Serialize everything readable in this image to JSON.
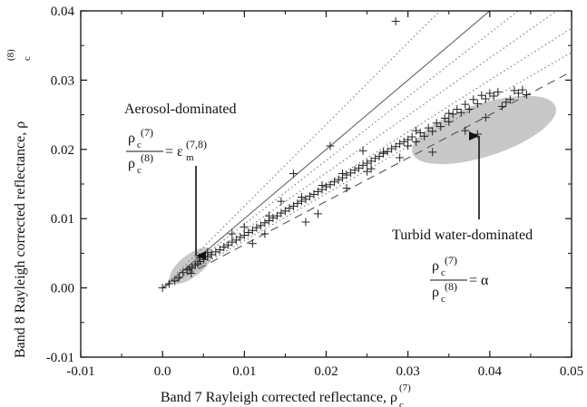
{
  "chart_data": {
    "type": "scatter",
    "xlabel": "Band 7 Rayleigh corrected reflectance, ρ",
    "xlabel_sub": "c",
    "xlabel_sup": "(7)",
    "ylabel": "Band 8 Rayleigh corrected reflectance, ρ",
    "ylabel_sub": "c",
    "ylabel_sup": "(8)",
    "xlim": [
      -0.01,
      0.05
    ],
    "ylim": [
      -0.01,
      0.04
    ],
    "xticks": [
      -0.01,
      0.0,
      0.01,
      0.02,
      0.03,
      0.04,
      0.05
    ],
    "xtick_labels": [
      "-0.01",
      "0.0",
      "0.01",
      "0.02",
      "0.03",
      "0.04",
      "0.05"
    ],
    "yticks": [
      -0.01,
      0.0,
      0.01,
      0.02,
      0.03,
      0.04
    ],
    "ytick_labels": [
      "-0.01",
      "0.00",
      "0.01",
      "0.02",
      "0.03",
      "0.04"
    ],
    "grid": false,
    "series": [
      {
        "marker": "+",
        "x": [
          0.0,
          0.0008,
          0.0015,
          0.002,
          0.0025,
          0.003,
          0.0033,
          0.0036,
          0.004,
          0.0043,
          0.0046,
          0.005,
          0.0055,
          0.006,
          0.0065,
          0.007,
          0.0075,
          0.008,
          0.0085,
          0.009,
          0.0095,
          0.01,
          0.0105,
          0.011,
          0.0115,
          0.012,
          0.0125,
          0.013,
          0.0135,
          0.014,
          0.0145,
          0.015,
          0.0155,
          0.016,
          0.0165,
          0.017,
          0.0175,
          0.018,
          0.0185,
          0.019,
          0.0195,
          0.02,
          0.0205,
          0.021,
          0.0215,
          0.022,
          0.0225,
          0.023,
          0.0235,
          0.024,
          0.0245,
          0.025,
          0.0255,
          0.026,
          0.0265,
          0.027,
          0.0275,
          0.028,
          0.0285,
          0.029,
          0.0295,
          0.03,
          0.0305,
          0.031,
          0.0315,
          0.032,
          0.0325,
          0.033,
          0.0335,
          0.034,
          0.0345,
          0.035,
          0.0355,
          0.036,
          0.0365,
          0.037,
          0.0375,
          0.038,
          0.0385,
          0.039,
          0.0395,
          0.04,
          0.0405,
          0.041,
          0.042,
          0.043,
          0.0435,
          0.044,
          0.0445,
          0.0035,
          0.0045,
          0.0055,
          0.0085,
          0.011,
          0.013,
          0.017,
          0.019,
          0.0225,
          0.025,
          0.027,
          0.029,
          0.03,
          0.031,
          0.033,
          0.035,
          0.037,
          0.0395,
          0.0415,
          0.0425,
          0.0125,
          0.0175,
          0.0195,
          0.022,
          0.0255,
          0.0245,
          0.0385,
          0.01,
          0.0145,
          0.016,
          0.0205,
          0.0285
        ],
        "y": [
          0.0,
          0.0006,
          0.001,
          0.0015,
          0.0022,
          0.0026,
          0.0028,
          0.003,
          0.0033,
          0.0035,
          0.0038,
          0.0041,
          0.0045,
          0.0048,
          0.0052,
          0.0055,
          0.0059,
          0.0062,
          0.0066,
          0.0069,
          0.0073,
          0.0076,
          0.008,
          0.0083,
          0.0087,
          0.009,
          0.0094,
          0.0097,
          0.0101,
          0.0104,
          0.0108,
          0.0111,
          0.0115,
          0.0118,
          0.0122,
          0.0125,
          0.0128,
          0.0132,
          0.0135,
          0.0139,
          0.0142,
          0.0146,
          0.0149,
          0.0153,
          0.0156,
          0.0159,
          0.0163,
          0.0166,
          0.017,
          0.0173,
          0.0177,
          0.018,
          0.0183,
          0.0187,
          0.019,
          0.0194,
          0.0197,
          0.0201,
          0.0204,
          0.0208,
          0.0211,
          0.0214,
          0.0218,
          0.0211,
          0.0224,
          0.0219,
          0.0231,
          0.0226,
          0.0238,
          0.0233,
          0.0245,
          0.024,
          0.0251,
          0.0258,
          0.0253,
          0.0265,
          0.0258,
          0.0272,
          0.0266,
          0.0278,
          0.0273,
          0.0281,
          0.0277,
          0.0283,
          0.0268,
          0.0285,
          0.0281,
          0.0286,
          0.0279,
          0.0021,
          0.0044,
          0.0051,
          0.0078,
          0.0064,
          0.0104,
          0.0131,
          0.0107,
          0.0144,
          0.0168,
          0.0196,
          0.0188,
          0.0205,
          0.0227,
          0.0196,
          0.0252,
          0.0227,
          0.0246,
          0.0262,
          0.0272,
          0.0078,
          0.0095,
          0.0148,
          0.0165,
          0.0172,
          0.0198,
          0.0222,
          0.0088,
          0.0125,
          0.0165,
          0.0205,
          0.0385
        ]
      }
    ],
    "lines": [
      {
        "style": "solid",
        "slope": 1.0
      },
      {
        "style": "dotted",
        "slope": 1.18
      },
      {
        "style": "dotted",
        "slope": 0.92
      },
      {
        "style": "dotted",
        "slope": 0.83
      },
      {
        "style": "dotted",
        "slope": 0.75
      },
      {
        "style": "dotted",
        "slope": 0.68
      },
      {
        "style": "dashed",
        "slope": 0.625
      }
    ],
    "regions": [
      {
        "label": "aerosol",
        "cx": 0.0035,
        "cy": 0.0032,
        "rx": 0.0032,
        "ry": 0.0016,
        "angle_deg": 38,
        "color": "#c8c8c8"
      },
      {
        "label": "turbid",
        "cx": 0.0393,
        "cy": 0.0228,
        "rx": 0.0092,
        "ry": 0.0038,
        "angle_deg": 18,
        "color": "#c8c8c8"
      }
    ],
    "annotations": {
      "aerosol_title": "Aerosol-dominated",
      "aerosol_eq_num": "ρ",
      "aerosol_eq_den": "ρ",
      "aerosol_eq_sub": "c",
      "aerosol_eq_num_sup": "(7)",
      "aerosol_eq_den_sup": "(8)",
      "aerosol_eq_rhs": "= ε",
      "aerosol_eq_rhs_sub": "m",
      "aerosol_eq_rhs_sup": "(7,8)",
      "turbid_title": "Turbid water-dominated",
      "turbid_eq_num": "ρ",
      "turbid_eq_den": "ρ",
      "turbid_eq_sub": "c",
      "turbid_eq_num_sup": "(7)",
      "turbid_eq_den_sup": "(8)",
      "turbid_eq_rhs": "= α"
    }
  }
}
